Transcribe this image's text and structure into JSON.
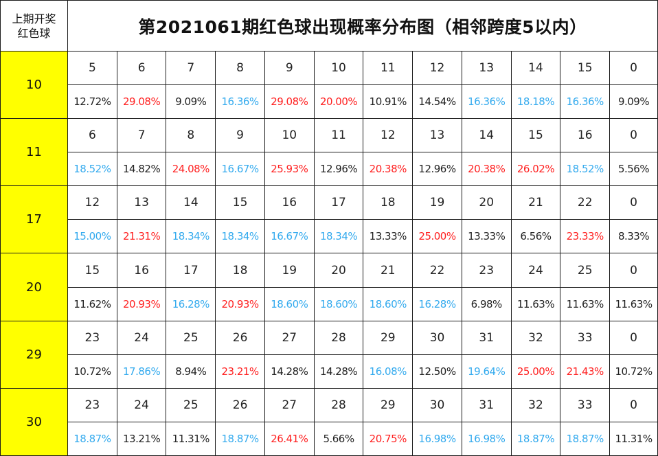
{
  "header": {
    "line1": "上期开奖",
    "line2": "红色球",
    "title": "第2021061期红色球出现概率分布图（相邻跨度5以内）"
  },
  "colors": {
    "red": "#ff2020",
    "blue": "#33aaee",
    "black": "#222222",
    "highlight": "#ffff00"
  },
  "groups": [
    {
      "ball": "10",
      "numbers": [
        "5",
        "6",
        "7",
        "8",
        "9",
        "10",
        "11",
        "12",
        "13",
        "14",
        "15",
        "0"
      ],
      "percents": [
        {
          "text": "12.72%",
          "color": "black"
        },
        {
          "text": "29.08%",
          "color": "red"
        },
        {
          "text": "9.09%",
          "color": "black"
        },
        {
          "text": "16.36%",
          "color": "blue"
        },
        {
          "text": "29.08%",
          "color": "red"
        },
        {
          "text": "20.00%",
          "color": "red"
        },
        {
          "text": "10.91%",
          "color": "black"
        },
        {
          "text": "14.54%",
          "color": "black"
        },
        {
          "text": "16.36%",
          "color": "blue"
        },
        {
          "text": "18.18%",
          "color": "blue"
        },
        {
          "text": "16.36%",
          "color": "blue"
        },
        {
          "text": "9.09%",
          "color": "black"
        }
      ]
    },
    {
      "ball": "11",
      "numbers": [
        "6",
        "7",
        "8",
        "9",
        "10",
        "11",
        "12",
        "13",
        "14",
        "15",
        "16",
        "0"
      ],
      "percents": [
        {
          "text": "18.52%",
          "color": "blue"
        },
        {
          "text": "14.82%",
          "color": "black"
        },
        {
          "text": "24.08%",
          "color": "red"
        },
        {
          "text": "16.67%",
          "color": "blue"
        },
        {
          "text": "25.93%",
          "color": "red"
        },
        {
          "text": "12.96%",
          "color": "black"
        },
        {
          "text": "20.38%",
          "color": "red"
        },
        {
          "text": "12.96%",
          "color": "black"
        },
        {
          "text": "20.38%",
          "color": "red"
        },
        {
          "text": "26.02%",
          "color": "red"
        },
        {
          "text": "18.52%",
          "color": "blue"
        },
        {
          "text": "5.56%",
          "color": "black"
        }
      ]
    },
    {
      "ball": "17",
      "numbers": [
        "12",
        "13",
        "14",
        "15",
        "16",
        "17",
        "18",
        "19",
        "20",
        "21",
        "22",
        "0"
      ],
      "percents": [
        {
          "text": "15.00%",
          "color": "blue"
        },
        {
          "text": "21.31%",
          "color": "red"
        },
        {
          "text": "18.34%",
          "color": "blue"
        },
        {
          "text": "18.34%",
          "color": "blue"
        },
        {
          "text": "16.67%",
          "color": "blue"
        },
        {
          "text": "18.34%",
          "color": "blue"
        },
        {
          "text": "13.33%",
          "color": "black"
        },
        {
          "text": "25.00%",
          "color": "red"
        },
        {
          "text": "13.33%",
          "color": "black"
        },
        {
          "text": "6.56%",
          "color": "black"
        },
        {
          "text": "23.33%",
          "color": "red"
        },
        {
          "text": "8.33%",
          "color": "black"
        }
      ]
    },
    {
      "ball": "20",
      "numbers": [
        "15",
        "16",
        "17",
        "18",
        "19",
        "20",
        "21",
        "22",
        "23",
        "24",
        "25",
        "0"
      ],
      "percents": [
        {
          "text": "11.62%",
          "color": "black"
        },
        {
          "text": "20.93%",
          "color": "red"
        },
        {
          "text": "16.28%",
          "color": "blue"
        },
        {
          "text": "20.93%",
          "color": "red"
        },
        {
          "text": "18.60%",
          "color": "blue"
        },
        {
          "text": "18.60%",
          "color": "blue"
        },
        {
          "text": "18.60%",
          "color": "blue"
        },
        {
          "text": "16.28%",
          "color": "blue"
        },
        {
          "text": "6.98%",
          "color": "black"
        },
        {
          "text": "11.63%",
          "color": "black"
        },
        {
          "text": "11.63%",
          "color": "black"
        },
        {
          "text": "11.63%",
          "color": "black"
        }
      ]
    },
    {
      "ball": "29",
      "numbers": [
        "23",
        "24",
        "25",
        "26",
        "27",
        "28",
        "29",
        "30",
        "31",
        "32",
        "33",
        "0"
      ],
      "percents": [
        {
          "text": "10.72%",
          "color": "black"
        },
        {
          "text": "17.86%",
          "color": "blue"
        },
        {
          "text": "8.94%",
          "color": "black"
        },
        {
          "text": "23.21%",
          "color": "red"
        },
        {
          "text": "14.28%",
          "color": "black"
        },
        {
          "text": "14.28%",
          "color": "black"
        },
        {
          "text": "16.08%",
          "color": "blue"
        },
        {
          "text": "12.50%",
          "color": "black"
        },
        {
          "text": "19.64%",
          "color": "blue"
        },
        {
          "text": "25.00%",
          "color": "red"
        },
        {
          "text": "21.43%",
          "color": "red"
        },
        {
          "text": "10.72%",
          "color": "black"
        }
      ]
    },
    {
      "ball": "30",
      "numbers": [
        "23",
        "24",
        "25",
        "26",
        "27",
        "28",
        "29",
        "30",
        "31",
        "32",
        "33",
        "0"
      ],
      "percents": [
        {
          "text": "18.87%",
          "color": "blue"
        },
        {
          "text": "13.21%",
          "color": "black"
        },
        {
          "text": "11.31%",
          "color": "black"
        },
        {
          "text": "18.87%",
          "color": "blue"
        },
        {
          "text": "26.41%",
          "color": "red"
        },
        {
          "text": "5.66%",
          "color": "black"
        },
        {
          "text": "20.75%",
          "color": "red"
        },
        {
          "text": "16.98%",
          "color": "blue"
        },
        {
          "text": "16.98%",
          "color": "blue"
        },
        {
          "text": "18.87%",
          "color": "blue"
        },
        {
          "text": "18.87%",
          "color": "blue"
        },
        {
          "text": "11.31%",
          "color": "black"
        }
      ]
    }
  ]
}
